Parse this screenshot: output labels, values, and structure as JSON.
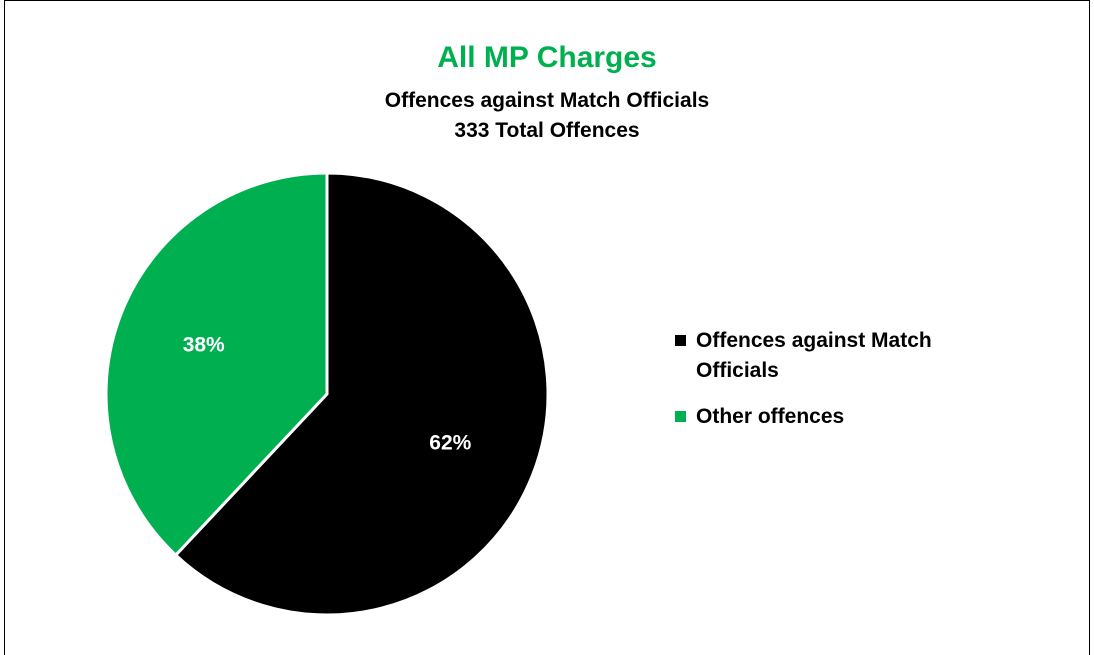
{
  "chart_data": {
    "type": "pie",
    "title": "All MP Charges",
    "subtitle_lines": [
      "Offences against Match Officials",
      "333 Total Offences"
    ],
    "slices": [
      {
        "label": "Offences against Match Officials",
        "value": 62,
        "display": "62%",
        "color": "#000000",
        "label_color": "#ffffff"
      },
      {
        "label": "Other offences",
        "value": 38,
        "display": "38%",
        "color": "#00b050",
        "label_color": "#ffffff"
      }
    ],
    "legend_position": "right",
    "title_color": "#00b050"
  }
}
